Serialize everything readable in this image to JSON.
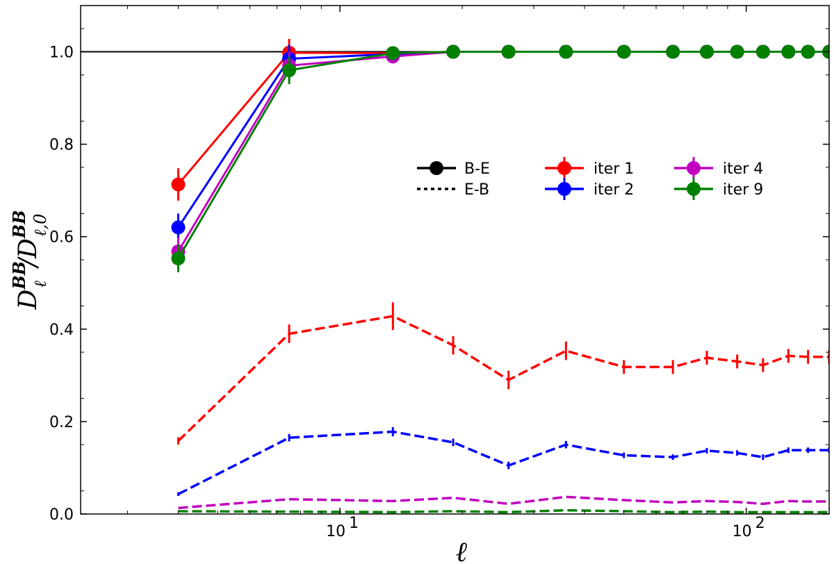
{
  "chart_data": {
    "type": "line",
    "xscale": "log",
    "xlim": [
      2.3,
      160
    ],
    "ylim": [
      0.0,
      1.1
    ],
    "xticks": [
      10,
      100
    ],
    "xtick_labels": [
      {
        "base": "10",
        "exp": "1"
      },
      {
        "base": "10",
        "exp": "2"
      }
    ],
    "yticks": [
      0.0,
      0.2,
      0.4,
      0.6,
      0.8,
      1.0
    ],
    "ytick_labels": [
      "0.0",
      "0.2",
      "0.4",
      "0.6",
      "0.8",
      "1.0"
    ],
    "xlabel": "ℓ",
    "ylabel": {
      "num_base": "D",
      "num_sup": "BB",
      "num_sub": "ℓ",
      "sep": "/",
      "den_base": "D",
      "den_sup": "BB",
      "den_sub": "ℓ,0"
    },
    "reference_line": 1.0,
    "x": [
      4,
      7.5,
      13.5,
      19,
      26,
      36,
      50,
      66,
      80,
      95,
      110,
      127,
      142,
      160
    ],
    "legend_placement": "center-right",
    "legend": {
      "styles": [
        {
          "label": "B-E",
          "line": "solid",
          "marker": true
        },
        {
          "label": "E-B",
          "line": "dotted",
          "marker": false
        }
      ]
    },
    "series": [
      {
        "name": "iter 1",
        "color": "#ff0000",
        "be": [
          0.713,
          0.998,
          0.997,
          1.0,
          1.0,
          1.0,
          1.0,
          1.0,
          1.0,
          1.0,
          1.0,
          1.0,
          1.0,
          1.0
        ],
        "be_err": [
          0.035,
          0.03,
          0.01,
          0.005,
          0.003,
          0.003,
          0.003,
          0.003,
          0.003,
          0.003,
          0.003,
          0.003,
          0.003,
          0.003
        ],
        "eb": [
          0.158,
          0.39,
          0.428,
          0.365,
          0.29,
          0.353,
          0.318,
          0.318,
          0.338,
          0.33,
          0.322,
          0.342,
          0.34,
          0.34
        ],
        "eb_err": [
          0.008,
          0.02,
          0.03,
          0.02,
          0.02,
          0.02,
          0.015,
          0.015,
          0.015,
          0.015,
          0.015,
          0.015,
          0.015,
          0.015
        ]
      },
      {
        "name": "iter 2",
        "color": "#0000ff",
        "be": [
          0.62,
          0.985,
          0.995,
          1.0,
          1.0,
          1.0,
          1.0,
          1.0,
          1.0,
          1.0,
          1.0,
          1.0,
          1.0,
          1.0
        ],
        "be_err": [
          0.03,
          0.03,
          0.01,
          0.005,
          0.003,
          0.003,
          0.003,
          0.003,
          0.003,
          0.003,
          0.003,
          0.003,
          0.003,
          0.003
        ],
        "eb": [
          0.043,
          0.165,
          0.178,
          0.155,
          0.105,
          0.15,
          0.127,
          0.123,
          0.137,
          0.132,
          0.123,
          0.138,
          0.138,
          0.138
        ],
        "eb_err": [
          0.004,
          0.008,
          0.01,
          0.008,
          0.008,
          0.008,
          0.006,
          0.006,
          0.006,
          0.006,
          0.006,
          0.006,
          0.006,
          0.006
        ]
      },
      {
        "name": "iter 4",
        "color": "#c000c0",
        "be": [
          0.568,
          0.97,
          0.99,
          1.0,
          1.0,
          1.0,
          1.0,
          1.0,
          1.0,
          1.0,
          1.0,
          1.0,
          1.0,
          1.0
        ],
        "be_err": [
          0.03,
          0.03,
          0.015,
          0.005,
          0.003,
          0.003,
          0.003,
          0.003,
          0.003,
          0.003,
          0.003,
          0.003,
          0.003,
          0.003
        ],
        "eb": [
          0.013,
          0.032,
          0.028,
          0.035,
          0.022,
          0.037,
          0.03,
          0.025,
          0.028,
          0.026,
          0.022,
          0.028,
          0.027,
          0.027
        ],
        "eb_err": [
          0,
          0,
          0,
          0,
          0,
          0,
          0,
          0,
          0,
          0,
          0,
          0,
          0,
          0
        ]
      },
      {
        "name": "iter 9",
        "color": "#008000",
        "be": [
          0.553,
          0.96,
          0.997,
          1.0,
          1.0,
          1.0,
          1.0,
          1.0,
          1.0,
          1.0,
          1.0,
          1.0,
          1.0,
          1.0
        ],
        "be_err": [
          0.03,
          0.03,
          0.015,
          0.005,
          0.003,
          0.003,
          0.003,
          0.003,
          0.003,
          0.003,
          0.003,
          0.003,
          0.003,
          0.003
        ],
        "eb": [
          0.006,
          0.005,
          0.004,
          0.006,
          0.004,
          0.008,
          0.006,
          0.004,
          0.005,
          0.004,
          0.004,
          0.004,
          0.004,
          0.004
        ],
        "eb_err": [
          0,
          0,
          0,
          0,
          0,
          0,
          0,
          0,
          0,
          0,
          0,
          0,
          0,
          0
        ]
      }
    ]
  }
}
